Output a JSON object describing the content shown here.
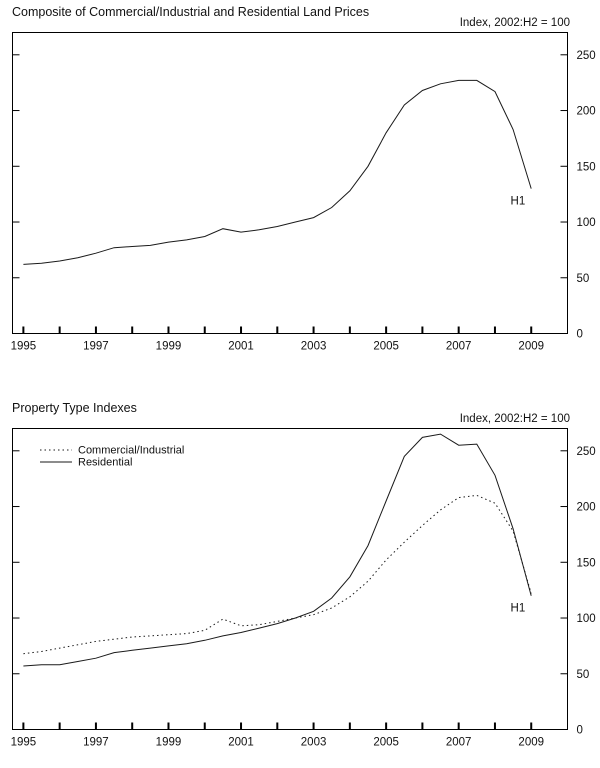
{
  "page": {
    "background": "#ffffff",
    "line_color": "#1a1a1a"
  },
  "chart_data": [
    {
      "type": "line",
      "title": "Composite of Commercial/Industrial and Residential Land Prices",
      "subtitle": "Index, 2002:H2 = 100",
      "annotation": "H1",
      "xlabel": "",
      "ylabel": "",
      "grid": false,
      "legend": {
        "show": false
      },
      "ylim": [
        0,
        270
      ],
      "yticks": [
        0,
        50,
        100,
        150,
        200,
        250
      ],
      "xtick_years": [
        1995,
        1996,
        1997,
        1998,
        1999,
        2000,
        2001,
        2002,
        2003,
        2004,
        2005,
        2006,
        2007,
        2008,
        2009
      ],
      "xtick_labels": [
        "1995",
        "1997",
        "1999",
        "2001",
        "2003",
        "2005",
        "2007",
        "2009"
      ],
      "x": [
        1995,
        1995.5,
        1996,
        1996.5,
        1997,
        1997.5,
        1998,
        1998.5,
        1999,
        1999.5,
        2000,
        2000.5,
        2001,
        2001.5,
        2002,
        2002.5,
        2003,
        2003.5,
        2004,
        2004.5,
        2005,
        2005.5,
        2006,
        2006.5,
        2007,
        2007.5,
        2008,
        2008.5,
        2009
      ],
      "series": [
        {
          "name": "Composite",
          "style": "solid",
          "values": [
            62,
            63,
            65,
            68,
            72,
            77,
            78,
            79,
            82,
            84,
            87,
            94,
            91,
            93,
            96,
            100,
            104,
            113,
            128,
            150,
            180,
            205,
            218,
            224,
            227,
            227,
            217,
            183,
            130
          ]
        }
      ]
    },
    {
      "type": "line",
      "title": "Property Type Indexes",
      "subtitle": "Index, 2002:H2 = 100",
      "annotation": "H1",
      "xlabel": "",
      "ylabel": "",
      "grid": false,
      "legend": {
        "show": true,
        "position": "top-left"
      },
      "ylim": [
        0,
        270
      ],
      "yticks": [
        0,
        50,
        100,
        150,
        200,
        250
      ],
      "xtick_years": [
        1995,
        1996,
        1997,
        1998,
        1999,
        2000,
        2001,
        2002,
        2003,
        2004,
        2005,
        2006,
        2007,
        2008,
        2009
      ],
      "xtick_labels": [
        "1995",
        "1997",
        "1999",
        "2001",
        "2003",
        "2005",
        "2007",
        "2009"
      ],
      "x": [
        1995,
        1995.5,
        1996,
        1996.5,
        1997,
        1997.5,
        1998,
        1998.5,
        1999,
        1999.5,
        2000,
        2000.5,
        2001,
        2001.5,
        2002,
        2002.5,
        2003,
        2003.5,
        2004,
        2004.5,
        2005,
        2005.5,
        2006,
        2006.5,
        2007,
        2007.5,
        2008,
        2008.5,
        2009
      ],
      "series": [
        {
          "name": "Commercial/Industrial",
          "style": "dotted",
          "values": [
            68,
            70,
            73,
            76,
            79,
            81,
            83,
            84,
            85,
            86,
            89,
            99,
            93,
            94,
            97,
            100,
            103,
            109,
            119,
            133,
            152,
            168,
            183,
            197,
            208,
            210,
            203,
            178,
            122
          ]
        },
        {
          "name": "Residential",
          "style": "solid",
          "values": [
            57,
            58,
            58,
            61,
            64,
            69,
            71,
            73,
            75,
            77,
            80,
            84,
            87,
            91,
            95,
            100,
            106,
            118,
            137,
            165,
            205,
            245,
            262,
            265,
            255,
            256,
            228,
            180,
            120
          ]
        }
      ]
    }
  ]
}
